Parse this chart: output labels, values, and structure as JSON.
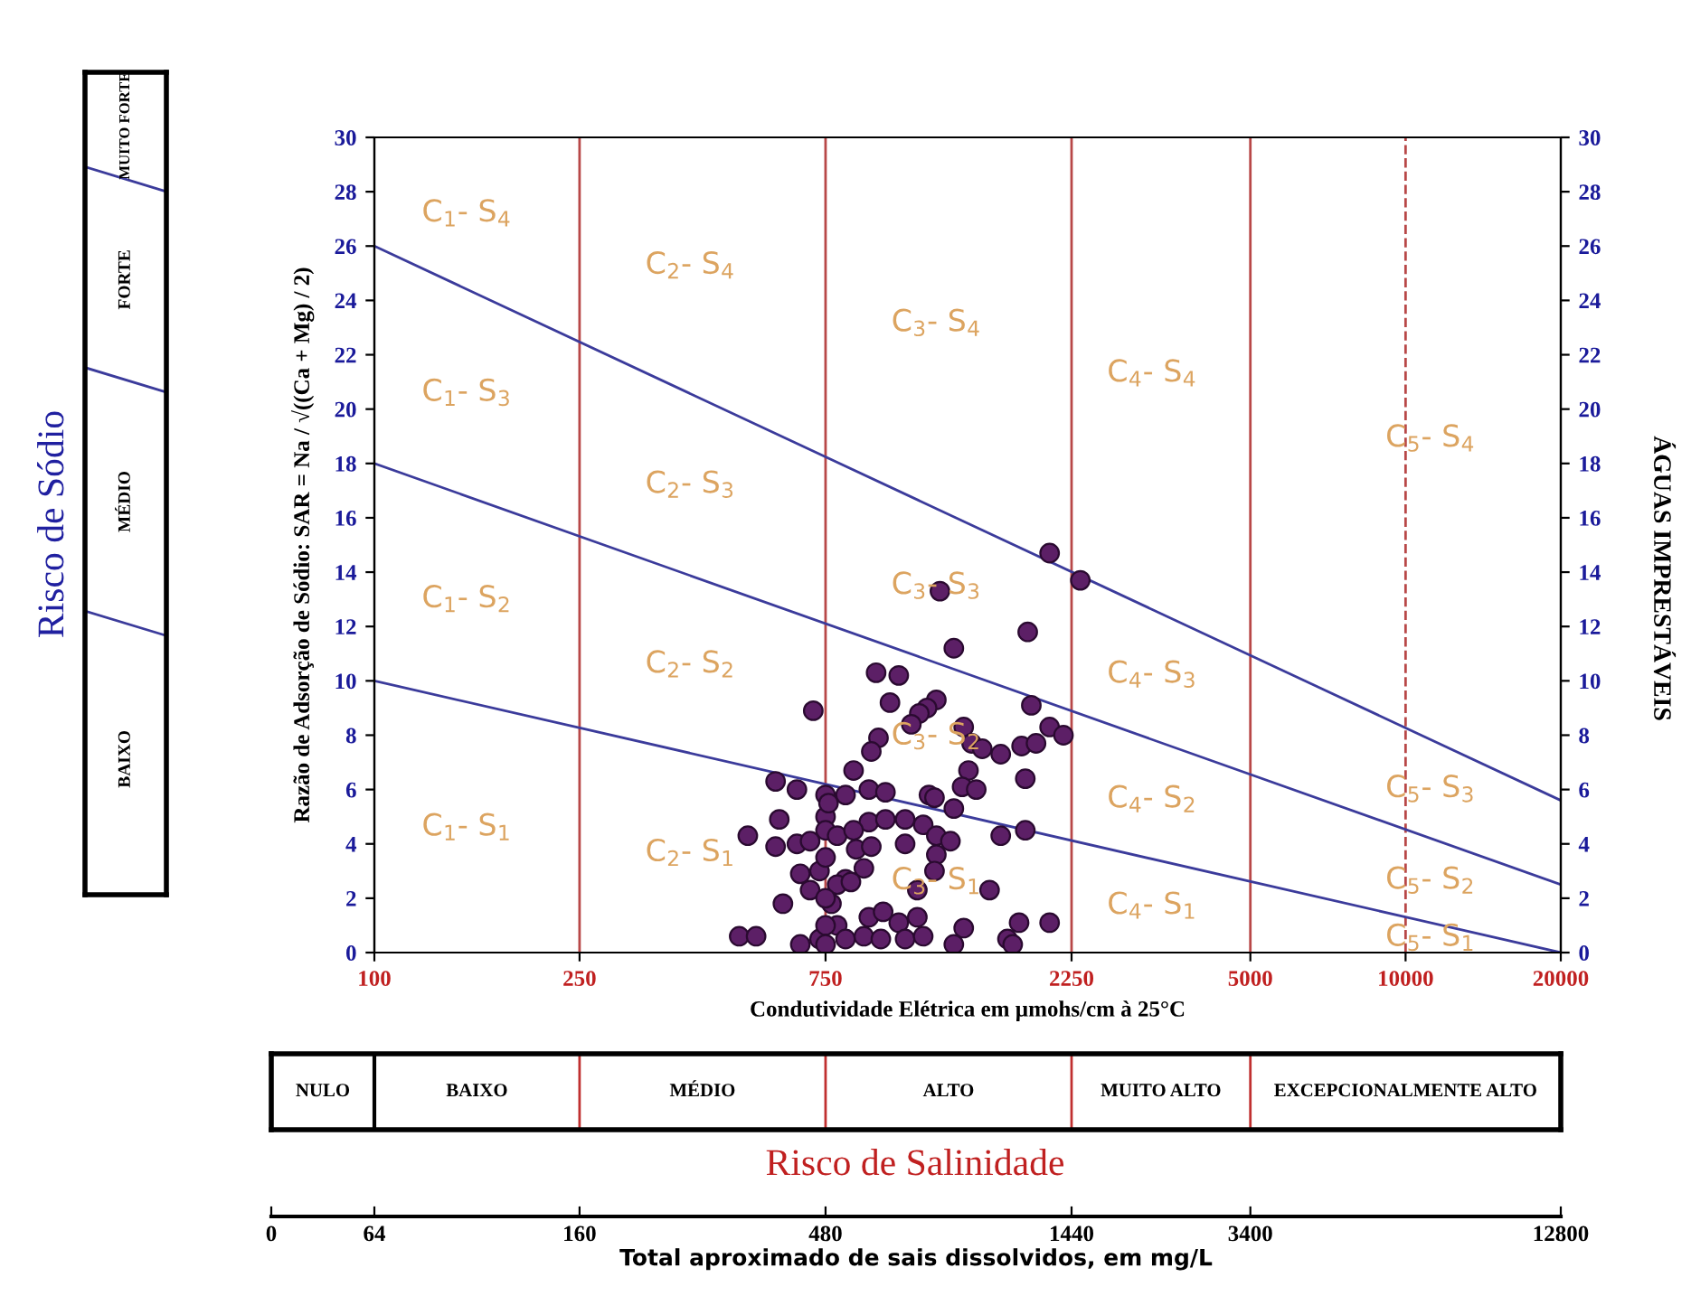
{
  "chart_data": {
    "type": "scatter",
    "xlabel": "Condutividade Elétrica em µmohs/cm à 25°C",
    "ylabel": "Razão de Adsorção de Sódio: SAR = Na / √((Ca + Mg) / 2)",
    "log": "x",
    "marker": "circle",
    "xlim": [
      100,
      20000
    ],
    "xticks": [
      100,
      250,
      750,
      2250,
      5000,
      10000,
      20000
    ],
    "ylim": [
      0,
      30
    ],
    "yticks": [
      0,
      2,
      4,
      6,
      8,
      10,
      12,
      14,
      16,
      18,
      20,
      22,
      24,
      26,
      28,
      30
    ],
    "y2lim": [
      0,
      30
    ],
    "y2ticks": [
      0,
      2,
      4,
      6,
      8,
      10,
      12,
      14,
      16,
      18,
      20,
      22,
      24,
      26,
      28,
      30
    ],
    "series": [
      {
        "color": "#5c1f66",
        "x": [
          2040,
          2340,
          1250,
          1850,
          1330,
          940,
          1040,
          1000,
          710,
          1230,
          1180,
          1140,
          1100,
          1880,
          1390,
          2040,
          2170,
          950,
          920,
          1440,
          1510,
          1640,
          1800,
          1920,
          850,
          1420,
          1380,
          1470,
          1830,
          600,
          660,
          750,
          820,
          910,
          980,
          1190,
          1220,
          1330,
          610,
          530,
          750,
          750,
          910,
          980,
          1070,
          1160,
          1230,
          1310,
          1640,
          1830,
          600,
          660,
          700,
          790,
          850,
          860,
          920,
          1070,
          1230,
          1220,
          670,
          730,
          820,
          890,
          700,
          790,
          840,
          1130,
          1560,
          620,
          770,
          910,
          970,
          1040,
          1130,
          1390,
          1780,
          2040,
          510,
          550,
          670,
          730,
          790,
          820,
          890,
          960,
          1070,
          1160,
          1330,
          1690,
          1730,
          750,
          750,
          750,
          750,
          760
        ],
        "values": [
          14.7,
          13.7,
          13.3,
          11.8,
          11.2,
          10.3,
          10.2,
          9.2,
          8.9,
          9.3,
          9.0,
          8.8,
          8.4,
          9.1,
          8.3,
          8.3,
          8.0,
          7.9,
          7.4,
          7.7,
          7.5,
          7.3,
          7.6,
          7.7,
          6.7,
          6.7,
          6.1,
          6.0,
          6.4,
          6.3,
          6.0,
          5.8,
          5.8,
          6.0,
          5.9,
          5.8,
          5.7,
          5.3,
          4.9,
          4.3,
          5.0,
          4.5,
          4.8,
          4.9,
          4.9,
          4.7,
          4.3,
          4.1,
          4.3,
          4.5,
          3.9,
          4.0,
          4.1,
          4.3,
          4.5,
          3.8,
          3.9,
          4.0,
          3.6,
          3.0,
          2.9,
          3.0,
          2.7,
          3.1,
          2.3,
          2.5,
          2.6,
          2.3,
          2.3,
          1.8,
          1.8,
          1.3,
          1.5,
          1.1,
          1.3,
          0.9,
          1.1,
          1.1,
          0.6,
          0.6,
          0.3,
          0.5,
          1.0,
          0.5,
          0.6,
          0.5,
          0.5,
          0.6,
          0.3,
          0.5,
          0.3,
          3.5,
          2.0,
          1.0,
          0.3,
          5.5
        ]
      },
      {
        "type": "line",
        "marker": "none",
        "color": "#3b3b9b",
        "x": [
          100,
          20000
        ],
        "values": [
          26,
          5.6
        ]
      },
      {
        "type": "line",
        "marker": "none",
        "color": "#3b3b9b",
        "x": [
          100,
          20000
        ],
        "values": [
          18,
          2.5
        ]
      },
      {
        "type": "line",
        "marker": "none",
        "color": "#3b3b9b",
        "x": [
          100,
          20000
        ],
        "values": [
          10,
          0
        ]
      }
    ],
    "ref_lines": [
      {
        "axis": "x",
        "value": 250,
        "color": "#b84848",
        "line_style": "solid"
      },
      {
        "axis": "x",
        "value": 750,
        "color": "#b84848",
        "line_style": "solid"
      },
      {
        "axis": "x",
        "value": 2250,
        "color": "#b84848",
        "line_style": "solid"
      },
      {
        "axis": "x",
        "value": 5000,
        "color": "#b84848",
        "line_style": "solid"
      },
      {
        "axis": "x",
        "value": 10000,
        "color": "#b84848",
        "line_style": "dashed"
      }
    ],
    "annotations": [
      "C$_{1}$- S$_{4}$",
      "C$_{2}$- S$_{4}$",
      "C$_{3}$- S$_{4}$",
      "C$_{4}$- S$_{4}$",
      "C$_{5}$- S$_{4}$",
      "C$_{1}$- S$_{3}$",
      "C$_{2}$- S$_{3}$",
      "C$_{3}$- S$_{3}$",
      "C$_{4}$- S$_{3}$",
      "C$_{5}$- S$_{3}$",
      "C$_{1}$- S$_{2}$",
      "C$_{2}$- S$_{2}$",
      "C$_{3}$- S$_{2}$",
      "C$_{4}$- S$_{2}$",
      "C$_{5}$- S$_{2}$",
      "C$_{1}$- S$_{1}$",
      "C$_{2}$- S$_{1}$",
      "C$_{3}$- S$_{1}$",
      "C$_{4}$- S$_{1}$",
      "C$_{5}$- S$_{1}$",
      "BAIXO",
      "MÉDIO",
      "FORTE",
      "MUITO FORTE",
      "Risco de Sódio",
      "ÁGUAS IMPRESTÁVEIS",
      "NULO",
      "BAIXO",
      "MÉDIO",
      "ALTO",
      "MUITO ALTO",
      "EXCEPCIONALMENTE ALTO",
      "Risco de Salinidade",
      "0",
      "64",
      "160",
      "480",
      "1440",
      "3400",
      "12800",
      "Total aproximado de sais dissolvidos, em mg/L"
    ]
  }
}
